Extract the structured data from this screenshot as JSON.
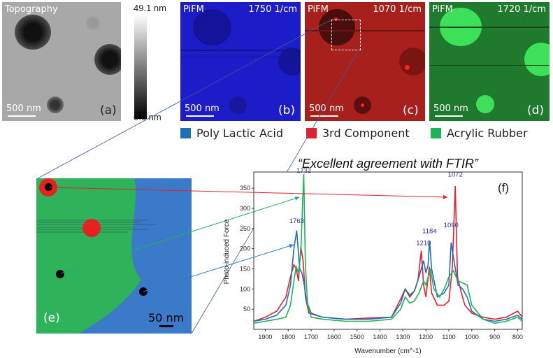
{
  "panels": {
    "a": {
      "title": "Topography",
      "scale": "500 nm",
      "letter": "(a)"
    },
    "b": {
      "title": "PiFM",
      "wavenumber": "1750 1/cm",
      "scale": "500 nm",
      "letter": "(b)"
    },
    "c": {
      "title": "PiFM",
      "wavenumber": "1070 1/cm",
      "scale": "500 nm",
      "letter": "(c)"
    },
    "d": {
      "title": "PiFM",
      "wavenumber": "1720 1/cm",
      "scale": "500 nm",
      "letter": "(d)"
    },
    "e": {
      "letter": "(e)",
      "scale": "50 nm"
    },
    "f": {
      "letter": "(f)"
    }
  },
  "colorbar": {
    "max": "49.1 nm",
    "min": "0.0 nm"
  },
  "legend": [
    {
      "label": "Poly Lactic Acid",
      "color": "#1f6fb8"
    },
    {
      "label": "3rd Component",
      "color": "#e8202a"
    },
    {
      "label": "Acrylic Rubber",
      "color": "#1fb35a"
    }
  ],
  "chart_data": {
    "type": "line",
    "title": "“Excellent agreement with FTIR”",
    "xlabel": "Wavenumber (cm^-1)",
    "ylabel": "Photo-induced Force",
    "xlim": [
      1950,
      780
    ],
    "ylim": [
      0,
      390
    ],
    "x_ticks": [
      1900,
      1800,
      1700,
      1600,
      1500,
      1400,
      1300,
      1200,
      1100,
      1000,
      900,
      800
    ],
    "y_ticks": [
      50,
      100,
      150,
      200,
      250,
      300,
      350
    ],
    "series": [
      {
        "color": "#e8202a",
        "points": [
          [
            1950,
            20
          ],
          [
            1900,
            30
          ],
          [
            1850,
            45
          ],
          [
            1810,
            80
          ],
          [
            1790,
            130
          ],
          [
            1775,
            160
          ],
          [
            1765,
            150
          ],
          [
            1755,
            120
          ],
          [
            1745,
            205
          ],
          [
            1735,
            170
          ],
          [
            1725,
            80
          ],
          [
            1710,
            40
          ],
          [
            1650,
            30
          ],
          [
            1550,
            25
          ],
          [
            1450,
            28
          ],
          [
            1350,
            30
          ],
          [
            1310,
            75
          ],
          [
            1290,
            100
          ],
          [
            1270,
            80
          ],
          [
            1250,
            95
          ],
          [
            1235,
            120
          ],
          [
            1220,
            195
          ],
          [
            1210,
            110
          ],
          [
            1200,
            80
          ],
          [
            1185,
            155
          ],
          [
            1175,
            90
          ],
          [
            1150,
            60
          ],
          [
            1120,
            60
          ],
          [
            1100,
            70
          ],
          [
            1085,
            150
          ],
          [
            1072,
            355
          ],
          [
            1062,
            130
          ],
          [
            1045,
            90
          ],
          [
            1030,
            60
          ],
          [
            1000,
            40
          ],
          [
            950,
            30
          ],
          [
            900,
            25
          ],
          [
            850,
            30
          ],
          [
            800,
            45
          ],
          [
            780,
            30
          ]
        ]
      },
      {
        "color": "#1f6fb8",
        "points": [
          [
            1950,
            20
          ],
          [
            1900,
            25
          ],
          [
            1850,
            35
          ],
          [
            1810,
            60
          ],
          [
            1790,
            110
          ],
          [
            1775,
            200
          ],
          [
            1763,
            245
          ],
          [
            1750,
            150
          ],
          [
            1740,
            140
          ],
          [
            1730,
            110
          ],
          [
            1720,
            70
          ],
          [
            1700,
            40
          ],
          [
            1650,
            30
          ],
          [
            1550,
            25
          ],
          [
            1450,
            25
          ],
          [
            1350,
            30
          ],
          [
            1310,
            65
          ],
          [
            1290,
            100
          ],
          [
            1270,
            85
          ],
          [
            1250,
            95
          ],
          [
            1230,
            130
          ],
          [
            1210,
            170
          ],
          [
            1200,
            140
          ],
          [
            1190,
            160
          ],
          [
            1184,
            220
          ],
          [
            1175,
            150
          ],
          [
            1150,
            80
          ],
          [
            1120,
            90
          ],
          [
            1100,
            110
          ],
          [
            1090,
            215
          ],
          [
            1080,
            180
          ],
          [
            1060,
            110
          ],
          [
            1040,
            100
          ],
          [
            1020,
            80
          ],
          [
            1000,
            45
          ],
          [
            950,
            25
          ],
          [
            900,
            20
          ],
          [
            850,
            25
          ],
          [
            800,
            35
          ],
          [
            780,
            25
          ]
        ]
      },
      {
        "color": "#1fb35a",
        "points": [
          [
            1950,
            15
          ],
          [
            1900,
            20
          ],
          [
            1850,
            25
          ],
          [
            1810,
            30
          ],
          [
            1790,
            60
          ],
          [
            1775,
            120
          ],
          [
            1765,
            155
          ],
          [
            1755,
            140
          ],
          [
            1745,
            190
          ],
          [
            1738,
            300
          ],
          [
            1732,
            385
          ],
          [
            1725,
            160
          ],
          [
            1715,
            60
          ],
          [
            1700,
            30
          ],
          [
            1650,
            25
          ],
          [
            1550,
            20
          ],
          [
            1450,
            20
          ],
          [
            1350,
            25
          ],
          [
            1310,
            50
          ],
          [
            1290,
            80
          ],
          [
            1270,
            65
          ],
          [
            1250,
            70
          ],
          [
            1230,
            90
          ],
          [
            1210,
            120
          ],
          [
            1200,
            110
          ],
          [
            1190,
            130
          ],
          [
            1180,
            150
          ],
          [
            1165,
            100
          ],
          [
            1140,
            80
          ],
          [
            1120,
            100
          ],
          [
            1100,
            130
          ],
          [
            1080,
            145
          ],
          [
            1060,
            120
          ],
          [
            1040,
            115
          ],
          [
            1020,
            110
          ],
          [
            1000,
            60
          ],
          [
            950,
            25
          ],
          [
            900,
            15
          ],
          [
            850,
            20
          ],
          [
            800,
            30
          ],
          [
            780,
            20
          ]
        ]
      }
    ],
    "annotations": [
      {
        "x": 1732,
        "y": 385,
        "label": "1732"
      },
      {
        "x": 1763,
        "y": 260,
        "label": "1763"
      },
      {
        "x": 1210,
        "y": 205,
        "label": "1210"
      },
      {
        "x": 1184,
        "y": 235,
        "label": "1184"
      },
      {
        "x": 1090,
        "y": 250,
        "label": "1090"
      },
      {
        "x": 1072,
        "y": 375,
        "label": "1072"
      }
    ]
  }
}
